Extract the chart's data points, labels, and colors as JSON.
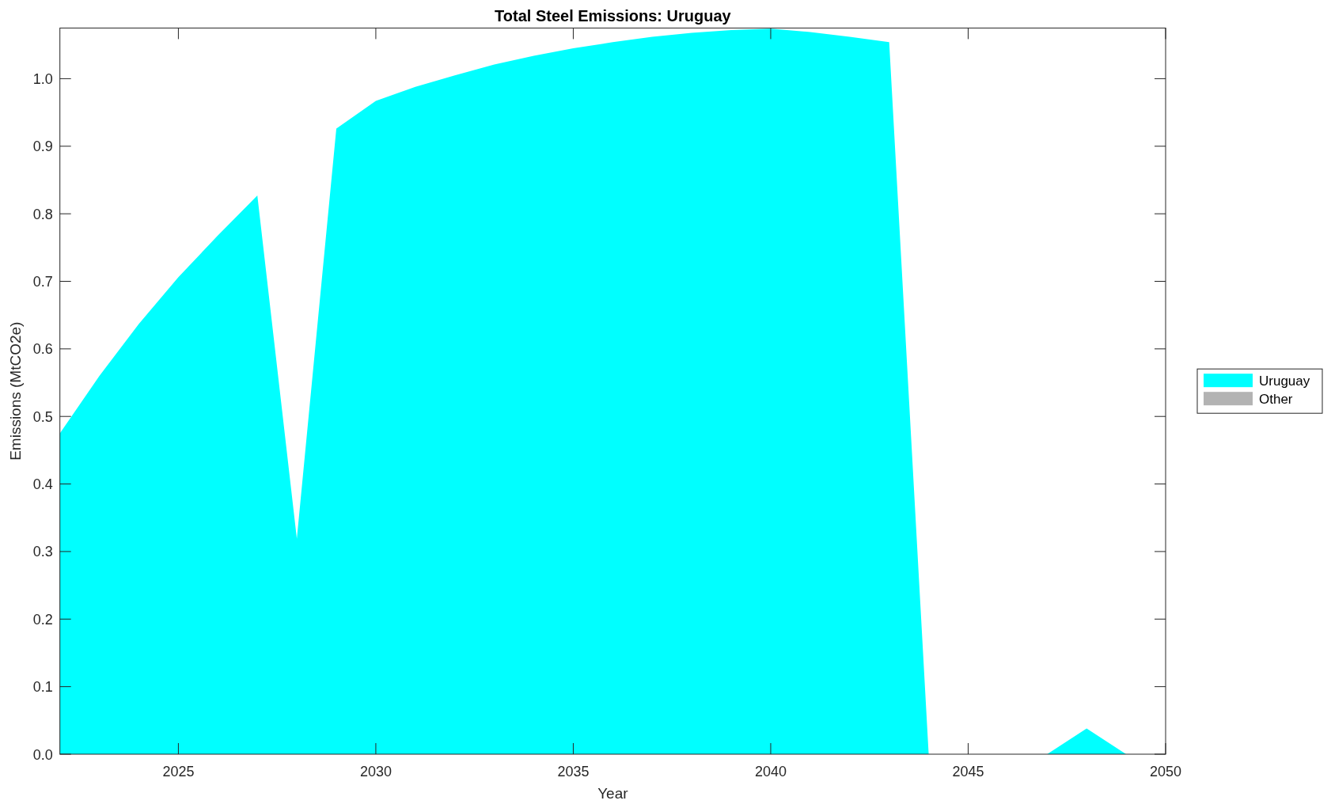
{
  "chart_data": {
    "type": "area",
    "title": "Total Steel Emissions: Uruguay",
    "xlabel": "Year",
    "ylabel": "Emissions (MtCO2e)",
    "x": [
      2022,
      2023,
      2024,
      2025,
      2026,
      2027,
      2028,
      2029,
      2030,
      2031,
      2032,
      2033,
      2034,
      2035,
      2036,
      2037,
      2038,
      2039,
      2040,
      2041,
      2042,
      2043,
      2044,
      2045,
      2046,
      2047,
      2048,
      2049,
      2050
    ],
    "series": [
      {
        "name": "Uruguay",
        "color": "#00ffff",
        "values": [
          0.475,
          0.56,
          0.637,
          0.706,
          0.768,
          0.827,
          0.319,
          0.926,
          0.967,
          0.988,
          1.005,
          1.021,
          1.034,
          1.045,
          1.054,
          1.062,
          1.068,
          1.072,
          1.074,
          1.069,
          1.062,
          1.054,
          0,
          0,
          0,
          0,
          0.038,
          0,
          0
        ]
      },
      {
        "name": "Other",
        "color": "#b3b3b3",
        "values": [
          null,
          null,
          null,
          null,
          null,
          null,
          null,
          null,
          null,
          null,
          null,
          null,
          null,
          null,
          null,
          null,
          null,
          null,
          null,
          null,
          null,
          null,
          null,
          null,
          null,
          null,
          null,
          null,
          null
        ]
      }
    ],
    "xlim": [
      2022,
      2050
    ],
    "xticks": [
      2025,
      2030,
      2035,
      2040,
      2045,
      2050
    ],
    "ylim": [
      0,
      1.075
    ],
    "yticks": [
      {
        "value": 0,
        "label": "0.0"
      },
      0.1,
      0.2,
      0.3,
      0.4,
      0.5,
      0.6,
      0.7,
      0.8,
      0.9,
      {
        "value": 1,
        "label": "1.0"
      }
    ],
    "legend": "right"
  }
}
